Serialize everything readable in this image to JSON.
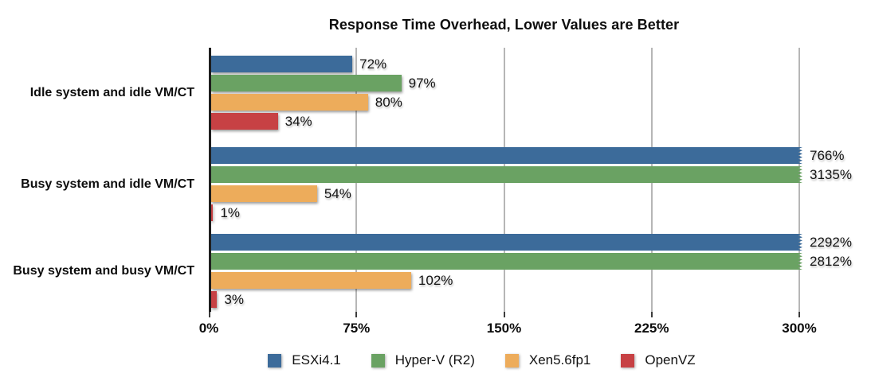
{
  "chart_data": {
    "type": "bar",
    "orientation": "horizontal",
    "title": "Response Time Overhead, Lower Values are Better",
    "categories": [
      "Idle system and idle VM/CT",
      "Busy system and idle VM/CT",
      "Busy system and busy VM/CT"
    ],
    "series": [
      {
        "name": "ESXi4.1",
        "color": "#3c6b9a",
        "values": [
          72,
          766,
          2292
        ],
        "labels": [
          "72%",
          "766%",
          "2292%"
        ]
      },
      {
        "name": "Hyper-V (R2)",
        "color": "#6aa263",
        "values": [
          97,
          3135,
          2812
        ],
        "labels": [
          "97%",
          "3135%",
          "2812%"
        ]
      },
      {
        "name": "Xen5.6fp1",
        "color": "#edac5b",
        "values": [
          80,
          54,
          102
        ],
        "labels": [
          "80%",
          "54%",
          "102%"
        ]
      },
      {
        "name": "OpenVZ",
        "color": "#c74144",
        "values": [
          34,
          1,
          3
        ],
        "labels": [
          "34%",
          "1%",
          "3%"
        ]
      }
    ],
    "xlabel": "",
    "ylabel": "",
    "xlim": [
      0,
      300
    ],
    "x_tick_labels": [
      "0%",
      "75%",
      "150%",
      "225%",
      "300%"
    ],
    "clip_limit": 300,
    "clip_style": "torn-zigzag-edge",
    "grid": "vertical",
    "gridline_color": "#b6b6b6",
    "axis_line_color": "#1f1f1f",
    "legend_position": "bottom"
  }
}
